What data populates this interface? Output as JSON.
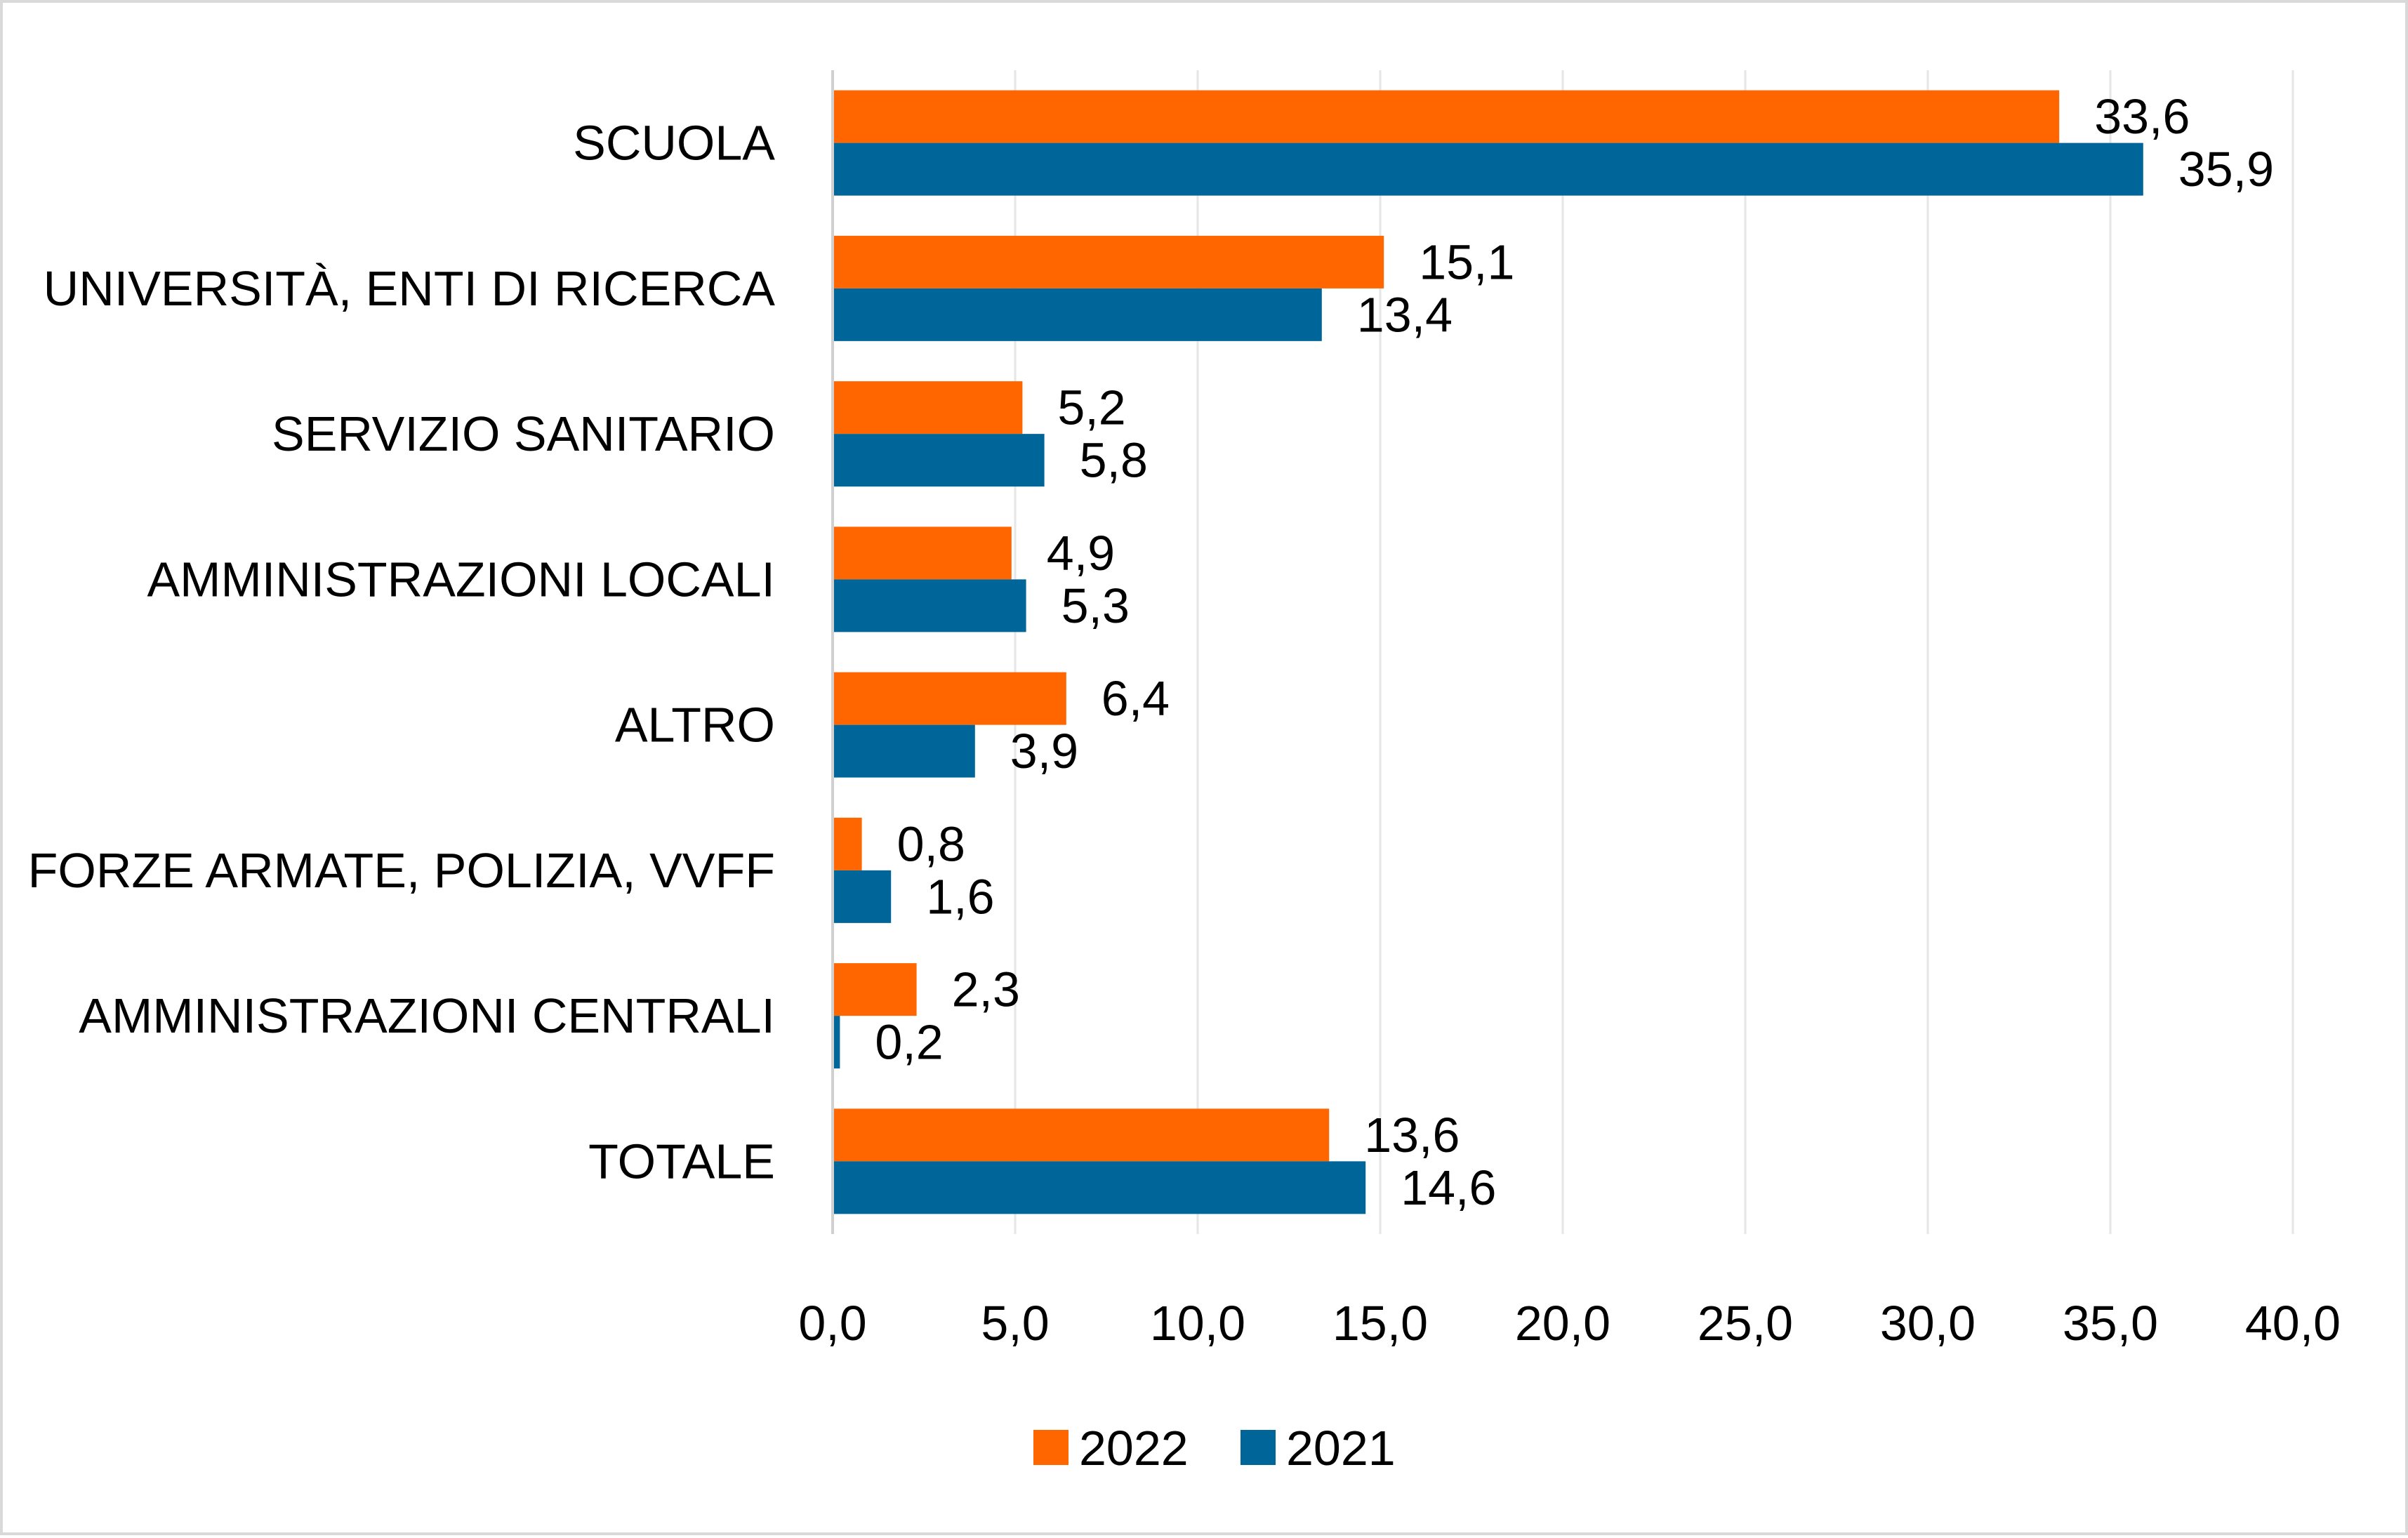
{
  "chart_data": {
    "type": "bar",
    "orientation": "horizontal",
    "categories": [
      "SCUOLA",
      "UNIVERSITÀ, ENTI DI RICERCA",
      "SERVIZIO SANITARIO",
      "AMMINISTRAZIONI LOCALI",
      "ALTRO",
      "FORZE ARMATE, POLIZIA, VVFF",
      "AMMINISTRAZIONI CENTRALI",
      "TOTALE"
    ],
    "series": [
      {
        "name": "2022",
        "color": "#ff6600",
        "values": [
          33.6,
          15.1,
          5.2,
          4.9,
          6.4,
          0.8,
          2.3,
          13.6
        ],
        "labels": [
          "33,6",
          "15,1",
          "5,2",
          "4,9",
          "6,4",
          "0,8",
          "2,3",
          "13,6"
        ]
      },
      {
        "name": "2021",
        "color": "#006699",
        "values": [
          35.9,
          13.4,
          5.8,
          5.3,
          3.9,
          1.6,
          0.2,
          14.6
        ],
        "labels": [
          "35,9",
          "13,4",
          "5,8",
          "5,3",
          "3,9",
          "1,6",
          "0,2",
          "14,6"
        ]
      }
    ],
    "xlim": [
      0,
      40
    ],
    "xticks": [
      0,
      5,
      10,
      15,
      20,
      25,
      30,
      35,
      40
    ],
    "xtick_labels": [
      "0,0",
      "5,0",
      "10,0",
      "15,0",
      "20,0",
      "25,0",
      "30,0",
      "35,0",
      "40,0"
    ],
    "title": "",
    "xlabel": "",
    "ylabel": "",
    "grid": true,
    "legend": {
      "placement": "bottom-center",
      "items": [
        "2022",
        "2021"
      ]
    }
  }
}
